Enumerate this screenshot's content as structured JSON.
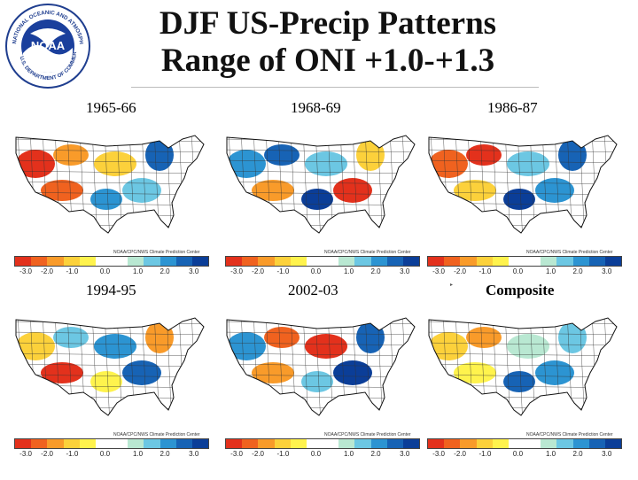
{
  "logo": {
    "center_text": "NOAA",
    "ring_text": "NATIONAL OCEANIC AND ATMOSPHERIC ADMINISTRATION",
    "bottom_text": "U.S. DEPARTMENT OF COMMERCE"
  },
  "title": {
    "line1": "DJF US-Precip Patterns",
    "line2": "Range of ONI +1.0-+1.3"
  },
  "colorbar": {
    "ticks": [
      "-3.0",
      "-2.0",
      "-1.0",
      "0.0",
      "1.0",
      "2.0",
      "3.0"
    ],
    "credit": "NOAA/CPC/NWS Climate Prediction Center"
  },
  "panels": [
    {
      "label": "1965-66",
      "bold": false
    },
    {
      "label": "1968-69",
      "bold": false
    },
    {
      "label": "1986-87",
      "bold": false
    },
    {
      "label": "1994-95",
      "bold": false
    },
    {
      "label": "2002-03",
      "bold": false
    },
    {
      "label": "Composite",
      "bold": true
    }
  ]
}
